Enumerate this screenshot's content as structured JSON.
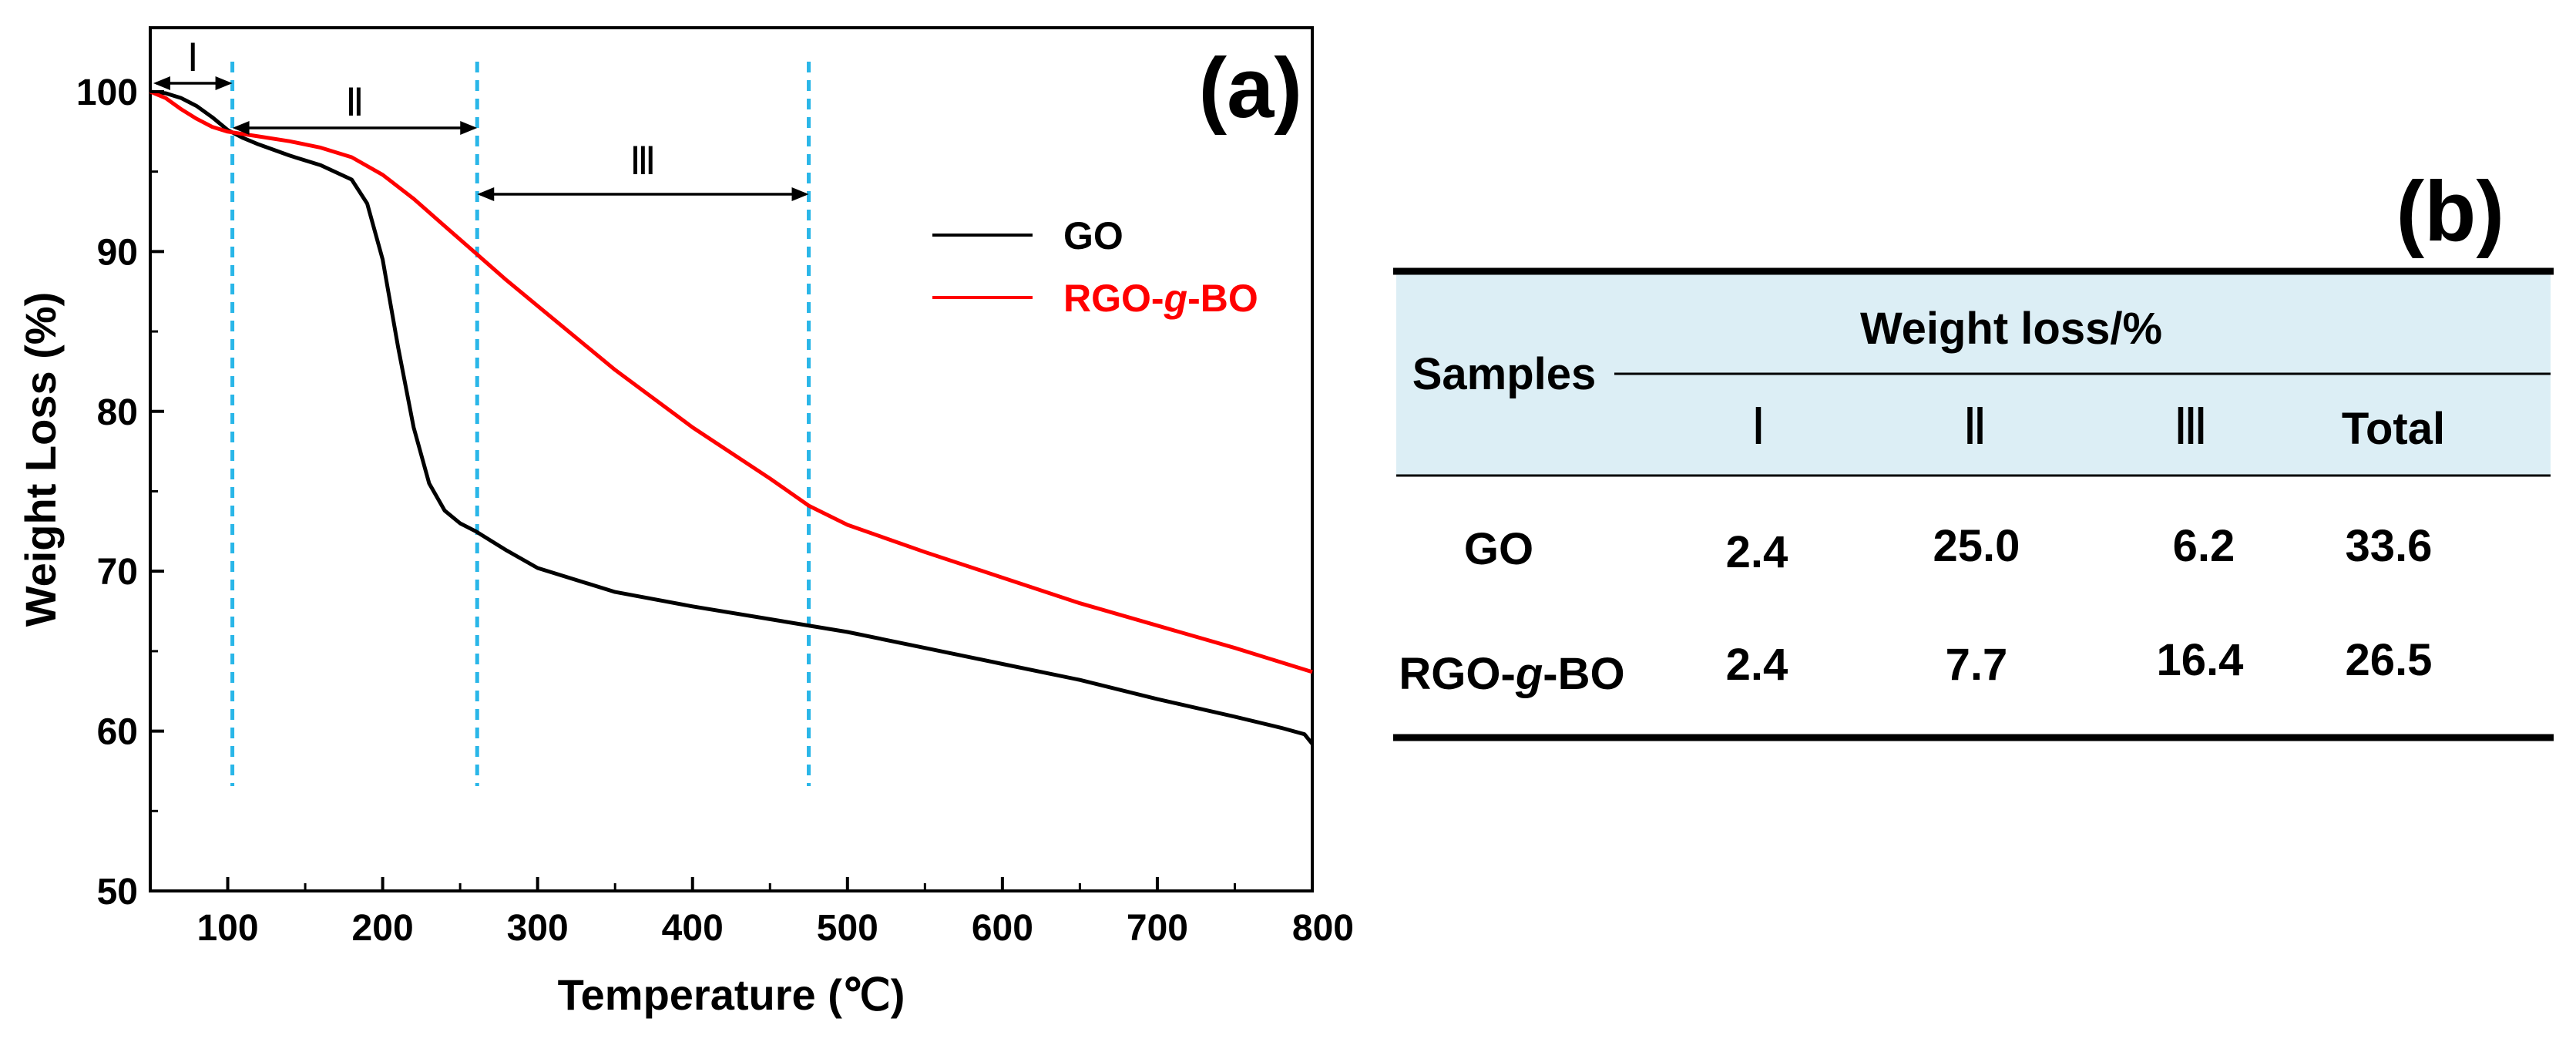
{
  "chart_data": [
    {
      "type": "line",
      "panel_label": "(a)",
      "xlabel": "Temperature (℃)",
      "ylabel": "Weight Loss (%)",
      "xlim": [
        50,
        800
      ],
      "ylim": [
        50,
        104
      ],
      "xticks": [
        "100",
        "200",
        "300",
        "400",
        "500",
        "600",
        "700",
        "800"
      ],
      "yticks": [
        "50",
        "60",
        "70",
        "80",
        "90",
        "100"
      ],
      "legend_position": "right",
      "series": [
        {
          "name": "GO",
          "color": "#000000",
          "x": [
            50,
            60,
            70,
            80,
            90,
            100,
            110,
            120,
            140,
            160,
            180,
            190,
            200,
            210,
            220,
            230,
            240,
            250,
            260,
            280,
            300,
            350,
            400,
            450,
            500,
            550,
            600,
            650,
            700,
            750,
            780,
            795,
            800
          ],
          "y": [
            100,
            99.9,
            99.6,
            99.1,
            98.4,
            97.6,
            97.1,
            96.7,
            96.0,
            95.4,
            94.5,
            93.0,
            89.5,
            84.0,
            79.0,
            75.5,
            73.8,
            73.0,
            72.5,
            71.3,
            70.2,
            68.7,
            67.8,
            67.0,
            66.2,
            65.2,
            64.2,
            63.2,
            62.0,
            60.9,
            60.2,
            59.8,
            59.2
          ]
        },
        {
          "name": "RGO-g-BO",
          "name_parts": [
            "RGO-",
            "g",
            "-BO"
          ],
          "color": "#ff0000",
          "x": [
            50,
            60,
            70,
            80,
            90,
            100,
            120,
            140,
            160,
            180,
            200,
            220,
            240,
            260,
            280,
            300,
            350,
            400,
            450,
            475,
            500,
            550,
            600,
            650,
            700,
            750,
            800
          ],
          "y": [
            100,
            99.6,
            98.9,
            98.3,
            97.8,
            97.5,
            97.2,
            96.9,
            96.5,
            95.9,
            94.8,
            93.3,
            91.6,
            89.9,
            88.2,
            86.6,
            82.6,
            79.0,
            75.8,
            74.1,
            72.9,
            71.2,
            69.6,
            68.0,
            66.6,
            65.2,
            63.7
          ]
        }
      ],
      "regions": {
        "boundaries_temperature": [
          103,
          261,
          475
        ],
        "labels": [
          "Ⅰ",
          "Ⅱ",
          "Ⅲ"
        ],
        "line_color": "#29b6e8"
      }
    },
    {
      "type": "table",
      "panel_label": "(b)",
      "header": {
        "row_label": "Samples",
        "group_label": "Weight loss/%",
        "columns": [
          "Ⅰ",
          "Ⅱ",
          "Ⅲ",
          "Total"
        ]
      },
      "header_background": "#dceef5",
      "rows": [
        {
          "sample": [
            "GO"
          ],
          "values": [
            "2.4",
            "25.0",
            "6.2",
            "33.6"
          ]
        },
        {
          "sample": [
            "RGO-",
            "g",
            "-BO"
          ],
          "values": [
            "2.4",
            "7.7",
            "16.4",
            "26.5"
          ]
        }
      ]
    }
  ]
}
